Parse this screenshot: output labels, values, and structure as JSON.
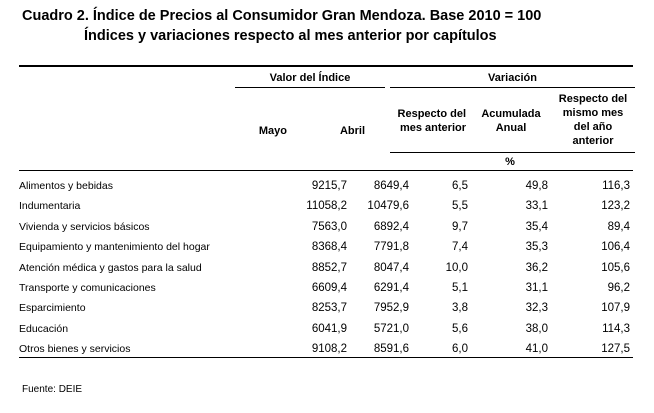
{
  "title": "Cuadro 2. Índice de Precios al Consumidor Gran Mendoza. Base 2010 = 100",
  "subtitle": "Índices y variaciones respecto al mes anterior por capítulos",
  "header": {
    "valor_indice": "Valor del Índice",
    "variacion": "Variación",
    "mayo": "Mayo",
    "abril": "Abril",
    "respecto_mes_anterior": [
      "Respecto del",
      "mes anterior"
    ],
    "acumulada_anual": [
      "Acumulada",
      "Anual"
    ],
    "respecto_mismo_mes": [
      "Respecto del",
      "mismo mes",
      "del año",
      "anterior"
    ],
    "percent": "%"
  },
  "rows": [
    {
      "categoria": "Alimentos y bebidas",
      "mayo": "9215,7",
      "abril": "8649,4",
      "mes_anterior": "6,5",
      "acumulada": "49,8",
      "mismo_mes": "116,3"
    },
    {
      "categoria": "Indumentaria",
      "mayo": "11058,2",
      "abril": "10479,6",
      "mes_anterior": "5,5",
      "acumulada": "33,1",
      "mismo_mes": "123,2"
    },
    {
      "categoria": "Vivienda y servicios básicos",
      "mayo": "7563,0",
      "abril": "6892,4",
      "mes_anterior": "9,7",
      "acumulada": "35,4",
      "mismo_mes": "89,4"
    },
    {
      "categoria": "Equipamiento y mantenimiento del hogar",
      "mayo": "8368,4",
      "abril": "7791,8",
      "mes_anterior": "7,4",
      "acumulada": "35,3",
      "mismo_mes": "106,4"
    },
    {
      "categoria": "Atención médica y gastos para la salud",
      "mayo": "8852,7",
      "abril": "8047,4",
      "mes_anterior": "10,0",
      "acumulada": "36,2",
      "mismo_mes": "105,6"
    },
    {
      "categoria": "Transporte y comunicaciones",
      "mayo": "6609,4",
      "abril": "6291,4",
      "mes_anterior": "5,1",
      "acumulada": "31,1",
      "mismo_mes": "96,2"
    },
    {
      "categoria": "Esparcimiento",
      "mayo": "8253,7",
      "abril": "7952,9",
      "mes_anterior": "3,8",
      "acumulada": "32,3",
      "mismo_mes": "107,9"
    },
    {
      "categoria": "Educación",
      "mayo": "6041,9",
      "abril": "5721,0",
      "mes_anterior": "5,6",
      "acumulada": "38,0",
      "mismo_mes": "114,3"
    },
    {
      "categoria": "Otros bienes y servicios",
      "mayo": "9108,2",
      "abril": "8591,6",
      "mes_anterior": "6,0",
      "acumulada": "41,0",
      "mismo_mes": "127,5"
    }
  ],
  "fuente": "Fuente: DEIE"
}
